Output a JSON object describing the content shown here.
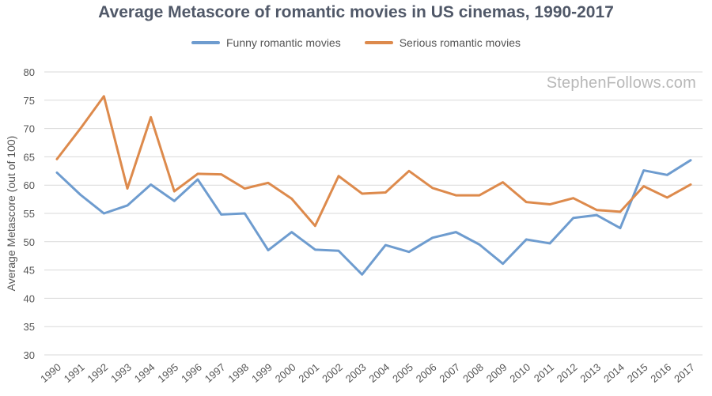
{
  "chart_data": {
    "type": "line",
    "title": "Average Metascore of romantic movies in US cinemas, 1990-2017",
    "ylabel": "Average Metascore (out of 100)",
    "xlabel": "",
    "watermark": "StephenFollows.com",
    "ylim": [
      30,
      80
    ],
    "yticks": [
      30,
      35,
      40,
      45,
      50,
      55,
      60,
      65,
      70,
      75,
      80
    ],
    "grid": true,
    "legend": "top-center",
    "x": [
      "1990",
      "1991",
      "1992",
      "1993",
      "1994",
      "1995",
      "1996",
      "1997",
      "1998",
      "1999",
      "2000",
      "2001",
      "2002",
      "2003",
      "2004",
      "2005",
      "2006",
      "2007",
      "2008",
      "2009",
      "2010",
      "2011",
      "2012",
      "2013",
      "2014",
      "2015",
      "2016",
      "2017"
    ],
    "series": [
      {
        "name": "Funny romantic movies",
        "color": "#6e9ccf",
        "values": [
          62.2,
          58.3,
          55.0,
          56.4,
          60.1,
          57.2,
          61.0,
          54.8,
          55.0,
          48.5,
          51.7,
          48.6,
          48.4,
          44.2,
          49.4,
          48.2,
          50.7,
          51.7,
          49.5,
          46.1,
          50.4,
          49.7,
          54.2,
          54.7,
          52.4,
          62.6,
          61.8,
          64.4
        ]
      },
      {
        "name": "Serious romantic movies",
        "color": "#dd8a4c",
        "values": [
          64.6,
          70.0,
          75.7,
          59.4,
          72.0,
          58.9,
          62.0,
          61.9,
          59.4,
          60.4,
          57.6,
          52.8,
          61.6,
          58.5,
          58.7,
          62.5,
          59.5,
          58.2,
          58.2,
          60.5,
          57.0,
          56.6,
          57.7,
          55.6,
          55.3,
          59.8,
          57.8,
          60.1
        ]
      }
    ]
  }
}
